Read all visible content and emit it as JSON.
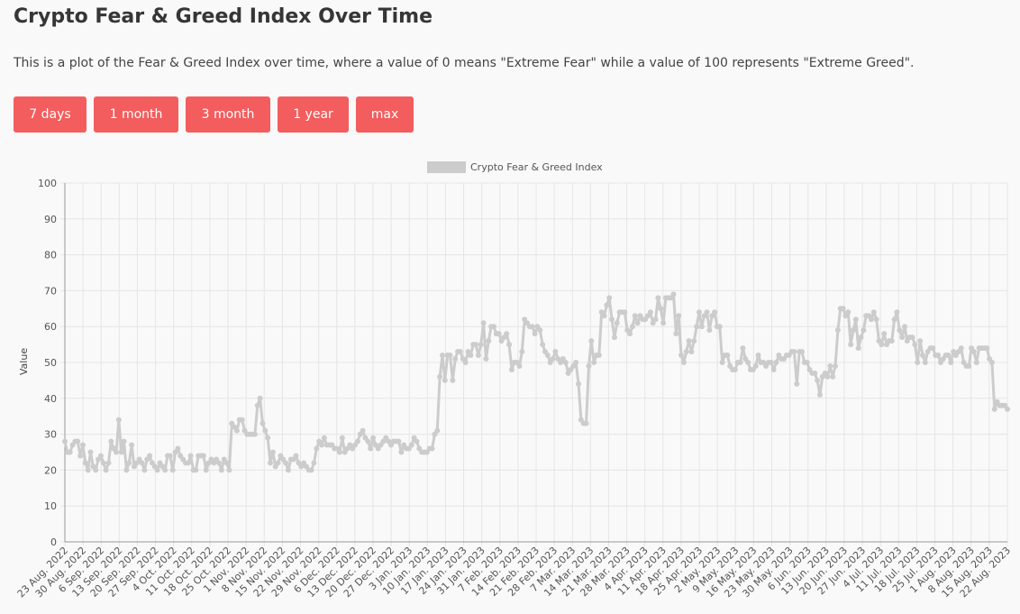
{
  "header": {
    "title": "Crypto Fear & Greed Index Over Time",
    "description": "This is a plot of the Fear & Greed Index over time, where a value of 0 means \"Extreme Fear\" while a value of 100 represents \"Extreme Greed\"."
  },
  "range_buttons": [
    {
      "label": "7 days"
    },
    {
      "label": "1 month"
    },
    {
      "label": "3 month"
    },
    {
      "label": "1 year"
    },
    {
      "label": "max"
    }
  ],
  "colors": {
    "button": "#f35d5d",
    "series": "#cccccc",
    "grid": "#e6e6e6"
  },
  "chart_data": {
    "type": "line",
    "title": "",
    "legend": "top-center",
    "grid": true,
    "series": [
      {
        "name": "Crypto Fear & Greed Index"
      }
    ],
    "ylabel": "Value",
    "ylim": [
      0,
      100
    ],
    "yticks": [
      0,
      10,
      20,
      30,
      40,
      50,
      60,
      70,
      80,
      90,
      100
    ],
    "xtick_labels": [
      "23 Aug. 2022",
      "30 Aug. 2022",
      "6 Sep. 2022",
      "13 Sep. 2022",
      "20 Sep. 2022",
      "27 Sep. 2022",
      "4 Oct. 2022",
      "11 Oct. 2022",
      "18 Oct. 2022",
      "25 Oct. 2022",
      "1 Nov. 2022",
      "8 Nov. 2022",
      "15 Nov. 2022",
      "22 Nov. 2022",
      "29 Nov. 2022",
      "6 Dec. 2022",
      "13 Dec. 2022",
      "20 Dec. 2022",
      "27 Dec. 2022",
      "3 Jan. 2023",
      "10 Jan. 2023",
      "17 Jan. 2023",
      "24 Jan. 2023",
      "31 Jan. 2023",
      "7 Feb. 2023",
      "14 Feb. 2023",
      "21 Feb. 2023",
      "28 Feb. 2023",
      "7 Mar. 2023",
      "14 Mar. 2023",
      "21 Mar. 2023",
      "28 Mar. 2023",
      "4 Apr. 2023",
      "11 Apr. 2023",
      "18 Apr. 2023",
      "25 Apr. 2023",
      "2 May. 2023",
      "9 May. 2023",
      "16 May. 2023",
      "23 May. 2023",
      "30 May. 2023",
      "6 Jun. 2023",
      "13 Jun. 2023",
      "20 Jun. 2023",
      "27 Jun. 2023",
      "4 Jul. 2023",
      "11 Jul. 2023",
      "18 Jul. 2023",
      "25 Jul. 2023",
      "1 Aug. 2023",
      "8 Aug. 2023",
      "15 Aug. 2023",
      "22 Aug. 2023"
    ],
    "values": [
      28,
      25,
      25,
      27,
      28,
      28,
      24,
      27,
      22,
      20,
      25,
      21,
      20,
      23,
      24,
      22,
      20,
      22,
      28,
      26,
      25,
      34,
      25,
      28,
      20,
      22,
      27,
      21,
      22,
      23,
      22,
      20,
      23,
      24,
      22,
      21,
      20,
      22,
      21,
      20,
      24,
      24,
      20,
      25,
      26,
      24,
      23,
      22,
      22,
      24,
      20,
      20,
      24,
      24,
      24,
      20,
      22,
      23,
      22,
      23,
      22,
      20,
      23,
      22,
      20,
      33,
      32,
      31,
      34,
      34,
      31,
      30,
      30,
      30,
      30,
      38,
      40,
      33,
      31,
      29,
      22,
      25,
      21,
      22,
      24,
      23,
      22,
      20,
      23,
      23,
      24,
      22,
      21,
      22,
      21,
      20,
      20,
      22,
      26,
      28,
      27,
      29,
      27,
      27,
      27,
      26,
      26,
      25,
      29,
      25,
      26,
      27,
      26,
      27,
      28,
      30,
      31,
      29,
      28,
      26,
      29,
      27,
      26,
      27,
      28,
      29,
      28,
      27,
      28,
      28,
      28,
      25,
      27,
      26,
      26,
      27,
      29,
      28,
      26,
      25,
      25,
      25,
      26,
      26,
      30,
      31,
      46,
      52,
      45,
      52,
      52,
      45,
      51,
      53,
      53,
      51,
      50,
      53,
      52,
      55,
      55,
      52,
      55,
      61,
      51,
      56,
      60,
      60,
      58,
      58,
      56,
      57,
      58,
      55,
      48,
      50,
      50,
      49,
      53,
      62,
      61,
      60,
      60,
      58,
      60,
      59,
      55,
      53,
      52,
      50,
      51,
      53,
      51,
      50,
      51,
      50,
      47,
      48,
      49,
      50,
      44,
      34,
      33,
      33,
      49,
      56,
      50,
      52,
      52,
      64,
      63,
      66,
      68,
      62,
      57,
      61,
      64,
      64,
      64,
      59,
      58,
      60,
      63,
      61,
      63,
      62,
      62,
      63,
      64,
      61,
      62,
      68,
      65,
      61,
      68,
      68,
      68,
      69,
      58,
      63,
      52,
      50,
      53,
      56,
      53,
      56,
      60,
      64,
      60,
      63,
      64,
      59,
      63,
      64,
      60,
      60,
      50,
      52,
      52,
      49,
      48,
      48,
      50,
      50,
      54,
      51,
      50,
      48,
      48,
      49,
      52,
      50,
      50,
      49,
      50,
      50,
      48,
      50,
      52,
      51,
      51,
      52,
      52,
      53,
      53,
      44,
      53,
      53,
      50,
      50,
      48,
      47,
      47,
      45,
      41,
      46,
      47,
      46,
      49,
      46,
      49,
      59,
      65,
      65,
      63,
      64,
      55,
      59,
      62,
      54,
      57,
      59,
      63,
      63,
      62,
      64,
      62,
      56,
      55,
      58,
      55,
      56,
      56,
      62,
      64,
      59,
      57,
      60,
      56,
      57,
      57,
      55,
      50,
      56,
      52,
      50,
      53,
      54,
      54,
      52,
      52,
      50,
      51,
      52,
      52,
      50,
      53,
      52,
      53,
      54,
      50,
      49,
      49,
      54,
      53,
      50,
      54,
      54,
      54,
      54,
      51,
      50,
      37,
      39,
      38,
      38,
      38,
      37
    ]
  }
}
